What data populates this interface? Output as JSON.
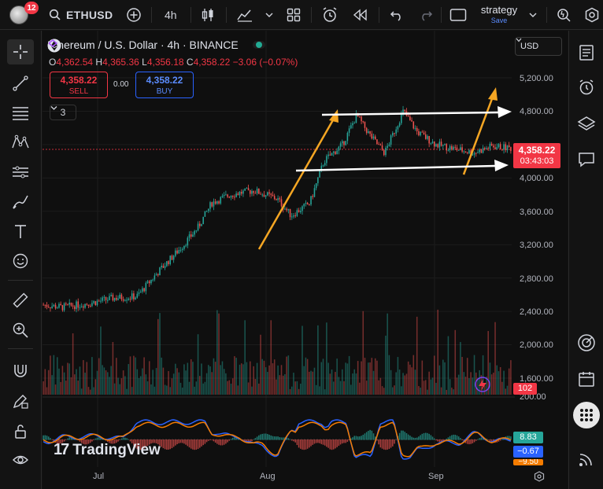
{
  "toolbar": {
    "notification_count": "12",
    "symbol": "ETHUSD",
    "interval": "4h",
    "strategy_label": "strategy",
    "strategy_sub": "Save"
  },
  "chart": {
    "title": "Ethereum / U.S. Dollar · 4h · BINANCE",
    "ohlc": {
      "o_label": "O",
      "o": "4,362.54",
      "h_label": "H",
      "h": "4,365.36",
      "l_label": "L",
      "l": "4,356.18",
      "c_label": "C",
      "c": "4,358.22",
      "change": "−3.06 (−0.07%)"
    },
    "sell": {
      "price": "4,358.22",
      "label": "SELL"
    },
    "buy": {
      "price": "4,358.22",
      "label": "BUY"
    },
    "spread": "0.00",
    "indicator_count": "3",
    "currency": "USD",
    "price_axis": [
      "5,200.00",
      "4,800.00",
      "4,000.00",
      "3,600.00",
      "3,200.00",
      "2,800.00",
      "2,400.00",
      "2,000.00",
      "1,600.00"
    ],
    "vol_axis_label": "200.00",
    "last_price": "4,358.22",
    "countdown": "03:43:03",
    "volume_value": "102",
    "osc_values": {
      "a": "8.83",
      "b": "−0.67",
      "c": "−9.50"
    },
    "date_labels": [
      "Jul",
      "Aug",
      "Sep"
    ],
    "branding": "TradingView",
    "colors": {
      "up": "#26a69a",
      "down": "#ef5350",
      "accent": "#2962ff",
      "arrow_yellow": "#f5a623",
      "arrow_white": "#ffffff"
    }
  },
  "chart_data": {
    "type": "candlestick",
    "price_range": [
      1500,
      5300
    ],
    "last": 4358.22,
    "path_keypoints": [
      [
        0,
        2480
      ],
      [
        0.04,
        2450
      ],
      [
        0.1,
        2500
      ],
      [
        0.15,
        2560
      ],
      [
        0.2,
        2580
      ],
      [
        0.25,
        2900
      ],
      [
        0.3,
        3200
      ],
      [
        0.33,
        3400
      ],
      [
        0.36,
        3700
      ],
      [
        0.4,
        3800
      ],
      [
        0.45,
        3850
      ],
      [
        0.5,
        3750
      ],
      [
        0.53,
        3550
      ],
      [
        0.57,
        3700
      ],
      [
        0.6,
        4200
      ],
      [
        0.64,
        4400
      ],
      [
        0.67,
        4750
      ],
      [
        0.7,
        4500
      ],
      [
        0.73,
        4300
      ],
      [
        0.77,
        4800
      ],
      [
        0.8,
        4550
      ],
      [
        0.84,
        4400
      ],
      [
        0.88,
        4350
      ],
      [
        0.92,
        4300
      ],
      [
        0.96,
        4380
      ],
      [
        1,
        4358
      ]
    ]
  },
  "icons": {
    "left": [
      "crosshair-icon",
      "trend-line-icon",
      "fib-icon",
      "pattern-icon",
      "projection-icon",
      "brush-icon",
      "text-icon",
      "emoji-icon",
      "ruler-icon",
      "zoom-icon",
      "magnet-icon",
      "pencil-lock-icon",
      "lock-icon",
      "eye-icon"
    ],
    "right": [
      "watchlist-icon",
      "alarm-icon",
      "layers-icon",
      "chat-icon",
      "target-icon",
      "calendar-icon",
      "apps-icon",
      "broadcast-icon"
    ]
  }
}
